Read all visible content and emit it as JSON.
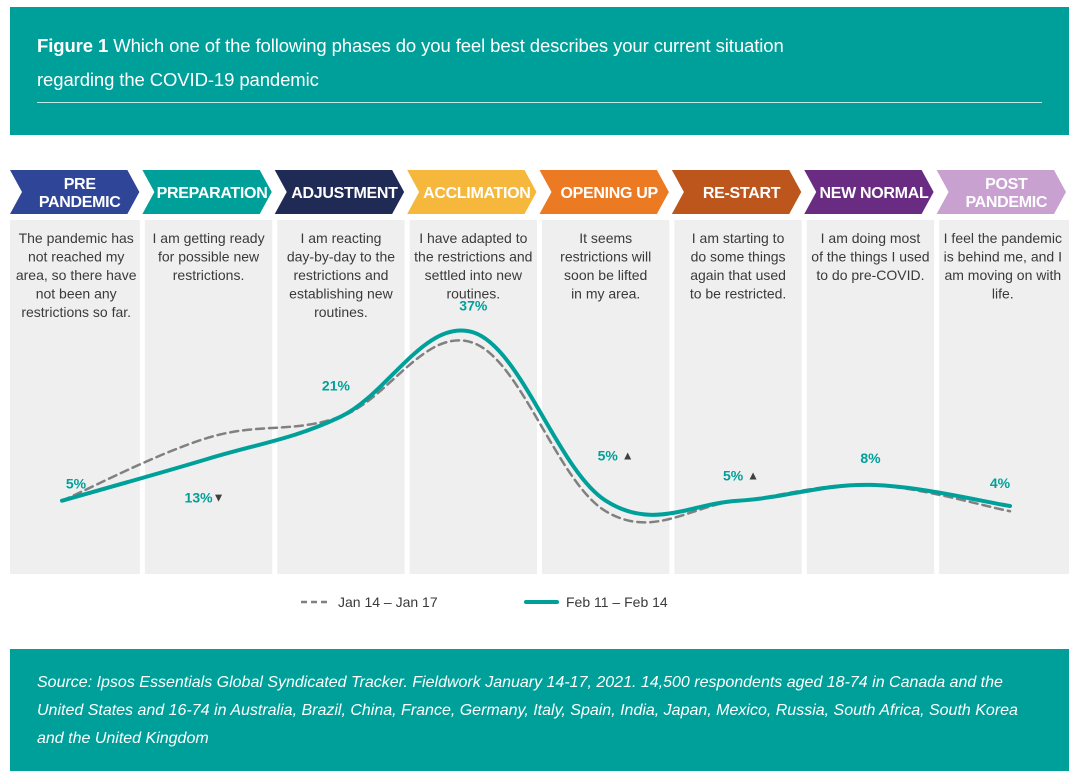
{
  "header": {
    "figure_label": "Figure 1",
    "title_line1": "Which one of the following phases do you feel best describes your current situation",
    "title_line2": "regarding the COVID-19 pandemic"
  },
  "chart_data": {
    "type": "line",
    "categories": [
      "PRE PANDEMIC",
      "PREPARATION",
      "ADJUSTMENT",
      "ACCLIMATION",
      "OPENING UP",
      "RE-START",
      "NEW NORMAL",
      "POST PANDEMIC"
    ],
    "phases": [
      {
        "label": [
          "PRE",
          "PANDEMIC"
        ],
        "color": "#2e4598",
        "description": [
          "The pandemic has",
          "not reached my",
          "area, so there have",
          "not been any",
          "restrictions so far."
        ]
      },
      {
        "label": [
          "PREPARATION"
        ],
        "color": "#00a09a",
        "description": [
          "I am getting ready",
          "for possible new",
          "restrictions."
        ]
      },
      {
        "label": [
          "ADJUSTMENT"
        ],
        "color": "#1f2a55",
        "description": [
          "I am reacting",
          "day-by-day to the",
          "restrictions and",
          "establishing new",
          "routines."
        ]
      },
      {
        "label": [
          "ACCLIMATION"
        ],
        "color": "#f5b83d",
        "description": [
          "I have adapted to",
          "the restrictions and",
          "settled into new",
          "routines."
        ]
      },
      {
        "label": [
          "OPENING UP"
        ],
        "color": "#ec7a23",
        "description": [
          "It seems",
          "restrictions will",
          "soon be lifted",
          "in my area."
        ]
      },
      {
        "label": [
          "RE-START"
        ],
        "color": "#bd561d",
        "description": [
          "I am starting to",
          "do some things",
          "again that used",
          "to be restricted."
        ]
      },
      {
        "label": [
          "NEW NORMAL"
        ],
        "color": "#6a2b83",
        "description": [
          "I am doing most",
          "of the things I used",
          "to do pre-COVID."
        ]
      },
      {
        "label": [
          "POST",
          "PANDEMIC"
        ],
        "color": "#c8a1d0",
        "description": [
          "I feel the pandemic",
          "is behind me, and I",
          "am moving on with",
          "life."
        ]
      }
    ],
    "series": [
      {
        "name": "Jan 14 – Jan 17",
        "style": "dashed",
        "color": "#808080",
        "values": [
          5,
          17,
          21,
          35,
          3,
          5,
          8,
          3
        ]
      },
      {
        "name": "Feb 11 – Feb 14",
        "style": "solid",
        "color": "#00a09a",
        "values": [
          5,
          13,
          21,
          37,
          5,
          5,
          8,
          4
        ]
      }
    ],
    "data_labels": [
      {
        "text": "5%",
        "arrow": ""
      },
      {
        "text": "13%",
        "arrow": "▼"
      },
      {
        "text": "21%",
        "arrow": ""
      },
      {
        "text": "37%",
        "arrow": ""
      },
      {
        "text": "5%",
        "arrow": "▲"
      },
      {
        "text": "5%",
        "arrow": "▲"
      },
      {
        "text": "8%",
        "arrow": ""
      },
      {
        "text": "4%",
        "arrow": ""
      }
    ],
    "ylim": [
      0,
      40
    ],
    "legend_position": "bottom-center"
  },
  "footer": {
    "source_line1": "Source: Ipsos Essentials Global Syndicated Tracker. Fieldwork January 14-17, 2021. 14,500 respondents aged 18-74 in Canada and the",
    "source_line2": "United States and 16-74 in Australia, Brazil, China, France, Germany, Italy, Spain, India, Japan, Mexico, Russia, South Africa, South Korea",
    "source_line3": "and the United Kingdom"
  }
}
